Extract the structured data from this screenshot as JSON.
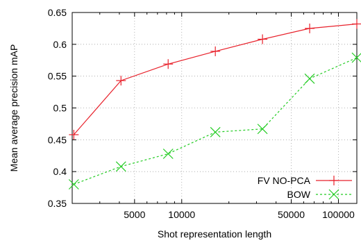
{
  "chart_data": {
    "type": "line",
    "xscale": "log",
    "xlabel": "Shot representation length",
    "ylabel": "Mean average precision mAP",
    "xlim": [
      2000,
      131072
    ],
    "ylim": [
      0.35,
      0.65
    ],
    "xticks": [
      5000,
      10000,
      50000,
      100000
    ],
    "xtick_labels": [
      "5000",
      "10000",
      "50000",
      "100000"
    ],
    "yticks": [
      0.35,
      0.4,
      0.45,
      0.5,
      0.55,
      0.6,
      0.65
    ],
    "ytick_labels": [
      "0.35",
      "0.4",
      "0.45",
      "0.5",
      "0.55",
      "0.6",
      "0.65"
    ],
    "grid": true,
    "legend_position": "bottom-right",
    "series": [
      {
        "name": "FV NO-PCA",
        "color": "#e8202a",
        "marker": "plus",
        "line": "solid",
        "x": [
          2048,
          4096,
          8192,
          16384,
          32768,
          65536,
          131072
        ],
        "y": [
          0.458,
          0.543,
          0.569,
          0.589,
          0.608,
          0.625,
          0.632
        ]
      },
      {
        "name": "BOW",
        "color": "#22cc22",
        "marker": "cross",
        "line": "dashed",
        "x": [
          2048,
          4096,
          8192,
          16384,
          32768,
          65536,
          131072
        ],
        "y": [
          0.38,
          0.408,
          0.428,
          0.462,
          0.467,
          0.546,
          0.579
        ]
      }
    ]
  }
}
